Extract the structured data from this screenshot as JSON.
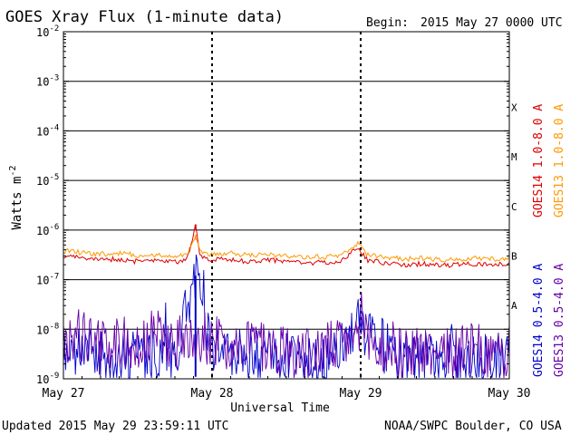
{
  "chart_data": {
    "type": "line",
    "title": "GOES Xray Flux (1-minute data)",
    "begin_label": "Begin:",
    "begin_value": "2015 May 27 0000 UTC",
    "xlabel": "Universal Time",
    "ylabel_base": "Watts m",
    "ylabel_exp": "-2",
    "x_tick_labels": [
      "May 27",
      "May 28",
      "May 29",
      "May 30"
    ],
    "x_range": [
      "2015-05-27",
      "2015-05-30"
    ],
    "y_scale": "log",
    "y_range": [
      1e-09,
      0.01
    ],
    "y_tick_values": [
      1e-09,
      1e-08,
      1e-07,
      1e-06,
      1e-05,
      0.0001,
      0.001,
      0.01
    ],
    "y_tick_exponents": [
      "-9",
      "-8",
      "-7",
      "-6",
      "-5",
      "-4",
      "-3",
      "-2"
    ],
    "y_tick_base": "10",
    "flare_classes": [
      {
        "label": "X",
        "value": 0.0003
      },
      {
        "label": "M",
        "value": 3e-05
      },
      {
        "label": "C",
        "value": 3e-06
      },
      {
        "label": "B",
        "value": 3e-07
      },
      {
        "label": "A",
        "value": 3e-08
      }
    ],
    "series": [
      {
        "name": "GOES14 1.0-8.0 A",
        "color": "#dd0000",
        "points": [
          [
            "2015-05-27 00:00",
            3e-07
          ],
          [
            "2015-05-27 03:00",
            2.7e-07
          ],
          [
            "2015-05-27 06:00",
            2.5e-07
          ],
          [
            "2015-05-27 09:00",
            2.6e-07
          ],
          [
            "2015-05-27 12:00",
            2.3e-07
          ],
          [
            "2015-05-27 15:00",
            2.4e-07
          ],
          [
            "2015-05-27 18:00",
            2.3e-07
          ],
          [
            "2015-05-27 20:00",
            2.5e-07
          ],
          [
            "2015-05-27 21:20",
            1.3e-06
          ],
          [
            "2015-05-27 22:00",
            3e-07
          ],
          [
            "2015-05-28 00:00",
            2.5e-07
          ],
          [
            "2015-05-28 03:00",
            2.6e-07
          ],
          [
            "2015-05-28 06:00",
            2.3e-07
          ],
          [
            "2015-05-28 09:00",
            2.5e-07
          ],
          [
            "2015-05-28 12:00",
            2.3e-07
          ],
          [
            "2015-05-28 15:00",
            2.2e-07
          ],
          [
            "2015-05-28 18:00",
            2.2e-07
          ],
          [
            "2015-05-28 21:00",
            2.4e-07
          ],
          [
            "2015-05-28 23:30",
            4.5e-07
          ],
          [
            "2015-05-29 01:00",
            2.5e-07
          ],
          [
            "2015-05-29 04:00",
            2.1e-07
          ],
          [
            "2015-05-29 07:00",
            2e-07
          ],
          [
            "2015-05-29 10:00",
            2.1e-07
          ],
          [
            "2015-05-29 13:00",
            1.9e-07
          ],
          [
            "2015-05-29 16:00",
            2e-07
          ],
          [
            "2015-05-29 19:00",
            2.1e-07
          ],
          [
            "2015-05-29 22:00",
            2e-07
          ],
          [
            "2015-05-30 00:00",
            2e-07
          ]
        ]
      },
      {
        "name": "GOES13 1.0-8.0 A",
        "color": "#ff9900",
        "points": [
          [
            "2015-05-27 00:00",
            3.8e-07
          ],
          [
            "2015-05-27 03:00",
            3.5e-07
          ],
          [
            "2015-05-27 06:00",
            3.3e-07
          ],
          [
            "2015-05-27 09:00",
            3.4e-07
          ],
          [
            "2015-05-27 12:00",
            3.1e-07
          ],
          [
            "2015-05-27 15:00",
            3.2e-07
          ],
          [
            "2015-05-27 18:00",
            3e-07
          ],
          [
            "2015-05-27 20:00",
            3.2e-07
          ],
          [
            "2015-05-27 21:20",
            8e-07
          ],
          [
            "2015-05-27 22:00",
            3.6e-07
          ],
          [
            "2015-05-28 00:00",
            3.3e-07
          ],
          [
            "2015-05-28 03:00",
            3.4e-07
          ],
          [
            "2015-05-28 06:00",
            3.1e-07
          ],
          [
            "2015-05-28 09:00",
            3.3e-07
          ],
          [
            "2015-05-28 12:00",
            3e-07
          ],
          [
            "2015-05-28 15:00",
            2.9e-07
          ],
          [
            "2015-05-28 18:00",
            2.9e-07
          ],
          [
            "2015-05-28 21:00",
            3.1e-07
          ],
          [
            "2015-05-28 23:30",
            5.5e-07
          ],
          [
            "2015-05-29 01:00",
            3.2e-07
          ],
          [
            "2015-05-29 04:00",
            2.8e-07
          ],
          [
            "2015-05-29 07:00",
            2.6e-07
          ],
          [
            "2015-05-29 10:00",
            2.7e-07
          ],
          [
            "2015-05-29 13:00",
            2.5e-07
          ],
          [
            "2015-05-29 16:00",
            2.6e-07
          ],
          [
            "2015-05-29 19:00",
            2.7e-07
          ],
          [
            "2015-05-29 22:00",
            2.6e-07
          ],
          [
            "2015-05-30 00:00",
            2.8e-07
          ]
        ]
      },
      {
        "name": "GOES14 0.5-4.0 A",
        "color": "#0000cc",
        "points": [
          [
            "2015-05-27 00:00",
            4e-09
          ],
          [
            "2015-05-27 06:00",
            3e-09
          ],
          [
            "2015-05-27 12:00",
            3e-09
          ],
          [
            "2015-05-27 18:00",
            3e-09
          ],
          [
            "2015-05-27 21:20",
            1.2e-07
          ],
          [
            "2015-05-28 00:00",
            3e-09
          ],
          [
            "2015-05-28 06:00",
            3e-09
          ],
          [
            "2015-05-28 12:00",
            2.5e-09
          ],
          [
            "2015-05-28 18:00",
            2.5e-09
          ],
          [
            "2015-05-28 23:30",
            1.3e-08
          ],
          [
            "2015-05-29 06:00",
            2.5e-09
          ],
          [
            "2015-05-29 12:00",
            2.5e-09
          ],
          [
            "2015-05-29 18:00",
            2.5e-09
          ],
          [
            "2015-05-30 00:00",
            2.5e-09
          ]
        ]
      },
      {
        "name": "GOES13 0.5-4.0 A",
        "color": "#6600aa",
        "points": [
          [
            "2015-05-27 00:00",
            5e-09
          ],
          [
            "2015-05-27 03:00",
            8e-09
          ],
          [
            "2015-05-27 06:00",
            4e-09
          ],
          [
            "2015-05-27 09:00",
            6e-09
          ],
          [
            "2015-05-27 12:00",
            4e-09
          ],
          [
            "2015-05-27 15:00",
            8e-09
          ],
          [
            "2015-05-27 18:00",
            5e-09
          ],
          [
            "2015-05-27 21:20",
            8e-09
          ],
          [
            "2015-05-28 00:00",
            6e-09
          ],
          [
            "2015-05-28 03:00",
            5e-09
          ],
          [
            "2015-05-28 06:00",
            6e-09
          ],
          [
            "2015-05-28 09:00",
            4e-09
          ],
          [
            "2015-05-28 12:00",
            4e-09
          ],
          [
            "2015-05-28 15:00",
            3e-09
          ],
          [
            "2015-05-28 18:00",
            4e-09
          ],
          [
            "2015-05-28 21:00",
            5e-09
          ],
          [
            "2015-05-28 23:30",
            8e-09
          ],
          [
            "2015-05-29 03:00",
            4e-09
          ],
          [
            "2015-05-29 06:00",
            3e-09
          ],
          [
            "2015-05-29 09:00",
            4e-09
          ],
          [
            "2015-05-29 12:00",
            3e-09
          ],
          [
            "2015-05-29 15:00",
            3e-09
          ],
          [
            "2015-05-29 18:00",
            4e-09
          ],
          [
            "2015-05-29 21:00",
            3e-09
          ],
          [
            "2015-05-30 00:00",
            3e-09
          ]
        ]
      }
    ],
    "grid": true
  },
  "footer": {
    "updated": "Updated 2015 May 29 23:59:11 UTC",
    "credit": "NOAA/SWPC Boulder, CO USA"
  }
}
